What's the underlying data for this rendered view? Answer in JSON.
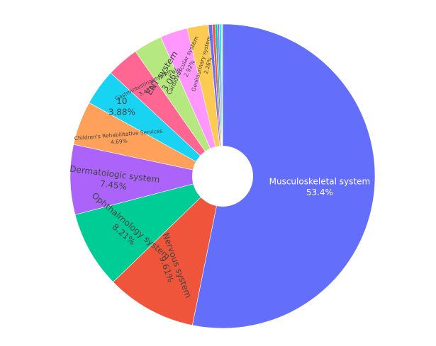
{
  "chart_data": {
    "type": "pie",
    "hole": true,
    "title": "",
    "showlegend": false,
    "slices": [
      {
        "label": "Musculoskeletal system",
        "value": 53.4,
        "percent_text": "53.4%",
        "color": "#636efa",
        "text_color": "#ffffff"
      },
      {
        "label": "Nervous system",
        "value": 9.61,
        "percent_text": "9.61%",
        "color": "#ef553b",
        "text_color": "#444444"
      },
      {
        "label": "Ophthalmology system",
        "value": 8.21,
        "percent_text": "8.21%",
        "color": "#00cc96",
        "text_color": "#444444"
      },
      {
        "label": "Dermatologic system",
        "value": 7.45,
        "percent_text": "7.45%",
        "color": "#ab63fa",
        "text_color": "#444444"
      },
      {
        "label": "Children's Rehabilitative Services",
        "value": 4.69,
        "percent_text": "4.69%",
        "color": "#ffa15a",
        "text_color": "#444444"
      },
      {
        "label": "10",
        "value": 3.88,
        "percent_text": "3.88%",
        "color": "#19d3f3",
        "text_color": "#444444"
      },
      {
        "label": "Gastrointestinal system",
        "value": 3.43,
        "percent_text": "3.43%",
        "color": "#ff6692",
        "text_color": "#444444"
      },
      {
        "label": "ENT system",
        "value": 3.06,
        "percent_text": "3.06%",
        "color": "#b6e880",
        "text_color": "#444444"
      },
      {
        "label": "Cardiovascular system",
        "value": 2.92,
        "percent_text": "2.92%",
        "color": "#ff97ff",
        "text_color": "#444444"
      },
      {
        "label": "Genitourinary system",
        "value": 2.26,
        "percent_text": "2.26%",
        "color": "#fecb52",
        "text_color": "#444444"
      },
      {
        "label": "",
        "value": 0.4,
        "percent_text": "",
        "color": "#636efa",
        "text_color": "#444444"
      },
      {
        "label": "",
        "value": 0.3,
        "percent_text": "",
        "color": "#ef553b",
        "text_color": "#444444"
      },
      {
        "label": "",
        "value": 0.25,
        "percent_text": "",
        "color": "#00cc96",
        "text_color": "#444444"
      },
      {
        "label": "",
        "value": 0.2,
        "percent_text": "",
        "color": "#ab63fa",
        "text_color": "#444444"
      },
      {
        "label": "",
        "value": 0.2,
        "percent_text": "",
        "color": "#19d3f3",
        "text_color": "#444444"
      },
      {
        "label": "",
        "value": 0.15,
        "percent_text": "",
        "color": "#b6e880",
        "text_color": "#444444"
      }
    ]
  }
}
